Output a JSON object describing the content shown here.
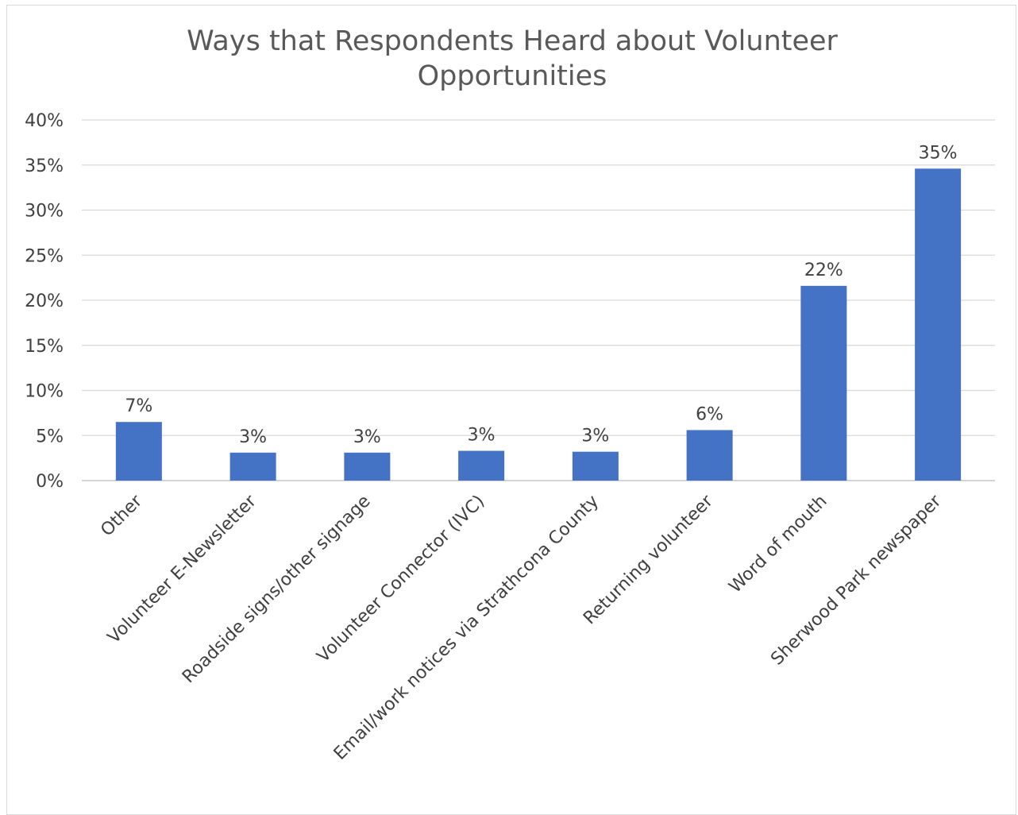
{
  "chart_data": {
    "type": "bar",
    "title": "Ways that Respondents Heard about Volunteer\nOpportunities",
    "xlabel": "",
    "ylabel": "",
    "categories": [
      "Other",
      "Volunteer E-Newsletter",
      "Roadside signs/other signage",
      "Volunteer Connector (IVC)",
      "Email/work notices via  Strathcona County",
      "Returning volunteer",
      "Word of mouth",
      "Sherwood Park newspaper"
    ],
    "values": [
      6.5,
      3.1,
      3.1,
      3.3,
      3.2,
      5.6,
      21.6,
      34.6
    ],
    "data_labels": [
      "7%",
      "3%",
      "3%",
      "3%",
      "3%",
      "6%",
      "22%",
      "35%"
    ],
    "ylim": [
      0,
      40
    ],
    "yticks": [
      0,
      5,
      10,
      15,
      20,
      25,
      30,
      35,
      40
    ],
    "ytick_labels": [
      "0%",
      "5%",
      "10%",
      "15%",
      "20%",
      "25%",
      "30%",
      "35%",
      "40%"
    ],
    "grid": true,
    "legend": "none",
    "colors": {
      "bar": "#4472c4",
      "grid": "#d9d9d9",
      "text": "#404040",
      "title": "#595959"
    }
  }
}
